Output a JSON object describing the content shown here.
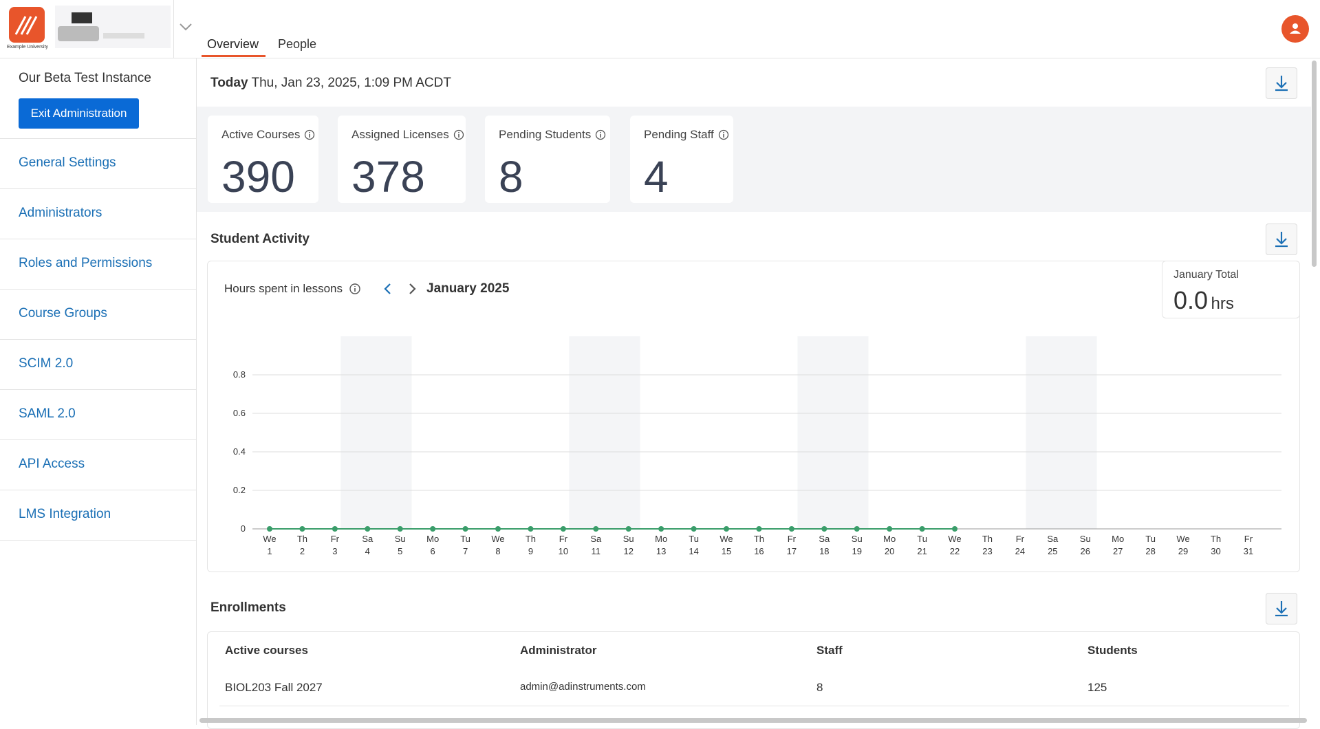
{
  "header": {
    "org_label": "Example University",
    "tabs": [
      "Overview",
      "People"
    ]
  },
  "sidebar": {
    "instance": "Our Beta Test Instance",
    "exit_button": "Exit Administration",
    "links": [
      "General Settings",
      "Administrators",
      "Roles and Permissions",
      "Course Groups",
      "SCIM 2.0",
      "SAML 2.0",
      "API Access",
      "LMS Integration"
    ]
  },
  "today": {
    "label": "Today",
    "date": "Thu, Jan 23, 2025, 1:09 PM ACDT"
  },
  "stats": [
    {
      "label": "Active Courses",
      "value": 390
    },
    {
      "label": "Assigned Licenses",
      "value": 378
    },
    {
      "label": "Pending Students",
      "value": 8
    },
    {
      "label": "Pending Staff",
      "value": 4
    }
  ],
  "activity": {
    "title": "Student Activity",
    "total_label": "January Total",
    "total_value": "0.0",
    "total_unit": "hrs"
  },
  "chart_data": {
    "type": "line",
    "title": "Hours spent in lessons",
    "period": "January 2025",
    "weekdays": [
      "We",
      "Th",
      "Fr",
      "Sa",
      "Su",
      "Mo",
      "Tu",
      "We",
      "Th",
      "Fr",
      "Sa",
      "Su",
      "Mo",
      "Tu",
      "We",
      "Th",
      "Fr",
      "Sa",
      "Su",
      "Mo",
      "Tu",
      "We",
      "Th",
      "Fr",
      "Sa",
      "Su",
      "Mo",
      "Tu",
      "We",
      "Th",
      "Fr"
    ],
    "categories": [
      "1",
      "2",
      "3",
      "4",
      "5",
      "6",
      "7",
      "8",
      "9",
      "10",
      "11",
      "12",
      "13",
      "14",
      "15",
      "16",
      "17",
      "18",
      "19",
      "20",
      "21",
      "22",
      "23",
      "24",
      "25",
      "26",
      "27",
      "28",
      "29",
      "30",
      "31"
    ],
    "values": [
      0,
      0,
      0,
      0,
      0,
      0,
      0,
      0,
      0,
      0,
      0,
      0,
      0,
      0,
      0,
      0,
      0,
      0,
      0,
      0,
      0,
      0,
      null,
      null,
      null,
      null,
      null,
      null,
      null,
      null,
      null
    ],
    "color": "#3a9d6a",
    "highlight_bands": [
      3,
      4,
      10,
      11,
      17,
      18,
      24,
      25
    ],
    "ylim": [
      0,
      1
    ],
    "yticks": [
      0,
      0.2,
      0.4,
      0.6,
      0.8
    ],
    "grid": true
  },
  "enrollments": {
    "title": "Enrollments",
    "columns": [
      "Active courses",
      "Administrator",
      "Staff",
      "Students"
    ],
    "rows": [
      [
        "BIOL203 Fall 2027",
        "admin@adinstruments.com",
        8,
        125
      ]
    ]
  }
}
